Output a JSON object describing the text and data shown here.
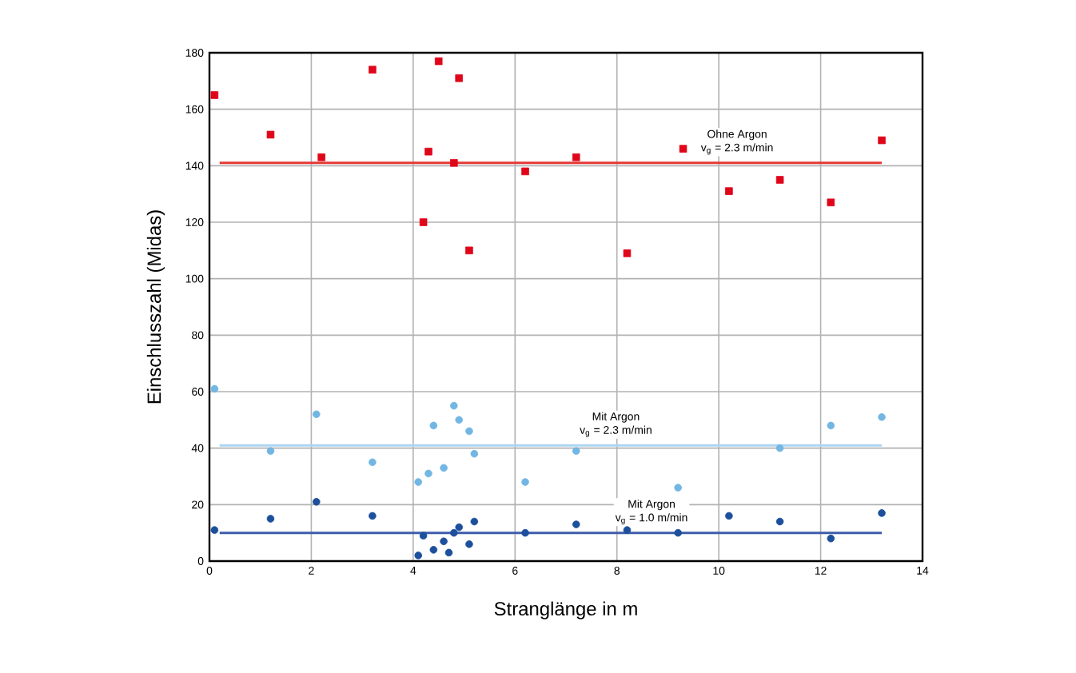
{
  "chart_data": {
    "type": "scatter",
    "xlabel": "Stranglänge in m",
    "ylabel": "Einschlusszahl (Midas)",
    "xlim": [
      0,
      14
    ],
    "ylim": [
      0,
      180
    ],
    "xticks": [
      0,
      2,
      4,
      6,
      8,
      10,
      12,
      14
    ],
    "yticks": [
      0,
      20,
      40,
      60,
      80,
      100,
      120,
      140,
      160,
      180
    ],
    "grid": true,
    "series": [
      {
        "color": "#e0061a",
        "marker": "square",
        "x": [
          0.1,
          1.2,
          2.2,
          3.2,
          4.2,
          4.3,
          4.5,
          4.8,
          4.9,
          5.1,
          6.2,
          7.2,
          8.2,
          9.3,
          10.2,
          11.2,
          12.2,
          13.2
        ],
        "values": [
          165,
          151,
          143,
          174,
          120,
          145,
          177,
          141,
          171,
          110,
          138,
          143,
          109,
          146,
          131,
          135,
          127,
          149
        ]
      },
      {
        "color": "#72b6e3",
        "marker": "circle",
        "x": [
          0.1,
          1.2,
          2.1,
          3.2,
          4.1,
          4.3,
          4.4,
          4.6,
          4.8,
          4.9,
          5.1,
          5.2,
          6.2,
          7.2,
          9.2,
          11.2,
          12.2,
          13.2
        ],
        "values": [
          61,
          39,
          52,
          35,
          28,
          31,
          48,
          33,
          55,
          50,
          46,
          38,
          28,
          39,
          26,
          40,
          48,
          51
        ]
      },
      {
        "color": "#1c4f9c",
        "marker": "circle",
        "x": [
          0.1,
          1.2,
          2.1,
          3.2,
          4.1,
          4.2,
          4.4,
          4.6,
          4.7,
          4.8,
          4.9,
          5.1,
          5.2,
          6.2,
          7.2,
          8.2,
          9.2,
          10.2,
          11.2,
          12.2,
          13.2
        ],
        "values": [
          11,
          15,
          21,
          16,
          2,
          9,
          4,
          7,
          3,
          10,
          12,
          6,
          14,
          10,
          13,
          11,
          10,
          16,
          14,
          8,
          17
        ]
      }
    ],
    "ref_lines": [
      {
        "axis": "y",
        "value": 141,
        "label": "Ohne Argon",
        "color": "#e53935"
      },
      {
        "axis": "y",
        "value": 41,
        "label": "Mit Argon",
        "color": "#acd6f2"
      },
      {
        "axis": "y",
        "value": 10,
        "label": "Mit Argon",
        "color": "#3f5daa"
      }
    ],
    "annotations": [
      "v$_{g}$ = 2.3 m/min",
      "v$_{g}$ = 2.3 m/min",
      "v$_{g}$ = 1.0 m/min"
    ]
  }
}
